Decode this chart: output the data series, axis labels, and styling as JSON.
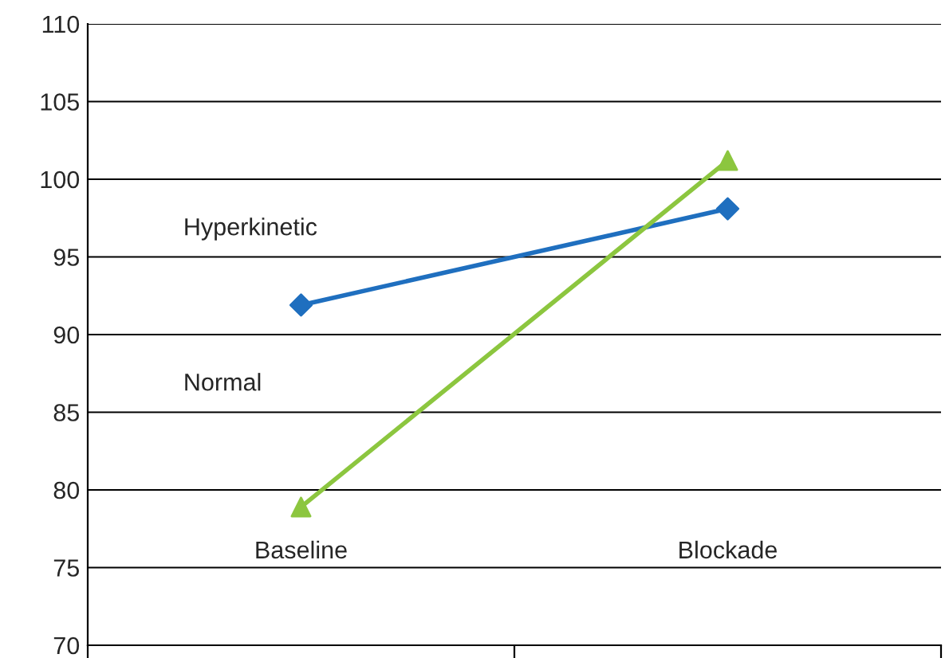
{
  "chart_data": {
    "type": "line",
    "categories": [
      "Baseline",
      "Blockade"
    ],
    "series": [
      {
        "color": "#1f6fbf",
        "values": [
          91.9,
          98.1
        ],
        "marker": "diamond"
      },
      {
        "color": "#8cc63f",
        "values": [
          78.9,
          101.2
        ],
        "marker": "triangle"
      }
    ],
    "annotations": [
      "Hyperkinetic",
      "Normal"
    ],
    "ylim": [
      70,
      110
    ],
    "yticks": [
      70,
      75,
      80,
      85,
      90,
      95,
      100,
      105,
      110
    ],
    "grid": "y",
    "legend": false,
    "line_style": "solid"
  }
}
